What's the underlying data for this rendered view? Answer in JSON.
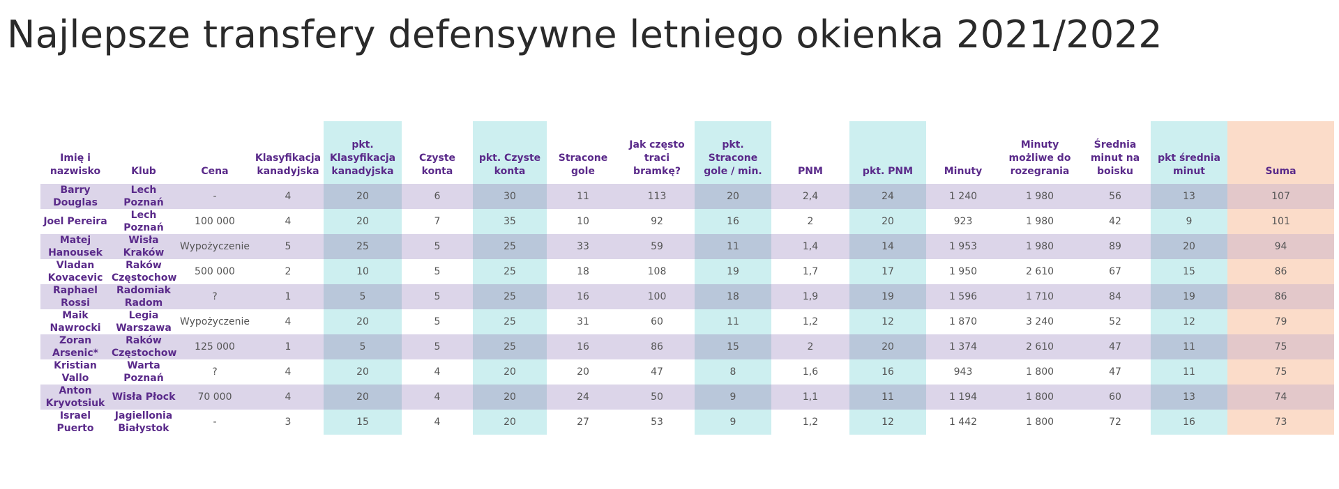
{
  "title": "Najlepsze transfery defensywne letniego okienka 2021/2022",
  "table": {
    "headers": [
      "Imię i nazwisko",
      "Klub",
      "Cena",
      "Klasyfikacja kanadyjska",
      "pkt. Klasyfikacja kanadyjska",
      "Czyste konta",
      "pkt. Czyste konta",
      "Stracone gole",
      "Jak często traci bramkę?",
      "pkt. Stracone gole / min.",
      "PNM",
      "pkt. PNM",
      "Minuty",
      "Minuty możliwe do rozegrania",
      "Średnia minut na boisku",
      "pkt średnia minut",
      "Suma"
    ],
    "rows": [
      [
        "Barry Douglas",
        "Lech Poznań",
        "-",
        "4",
        "20",
        "6",
        "30",
        "11",
        "113",
        "20",
        "2,4",
        "24",
        "1 240",
        "1 980",
        "56",
        "13",
        "107"
      ],
      [
        "Joel Pereira",
        "Lech Poznań",
        "100 000",
        "4",
        "20",
        "7",
        "35",
        "10",
        "92",
        "16",
        "2",
        "20",
        "923",
        "1 980",
        "42",
        "9",
        "101"
      ],
      [
        "Matej Hanousek",
        "Wisła Kraków",
        "Wypożyczenie",
        "5",
        "25",
        "5",
        "25",
        "33",
        "59",
        "11",
        "1,4",
        "14",
        "1 953",
        "1 980",
        "89",
        "20",
        "94"
      ],
      [
        "Vladan Kovacevic",
        "Raków Częstochowa",
        "500 000",
        "2",
        "10",
        "5",
        "25",
        "18",
        "108",
        "19",
        "1,7",
        "17",
        "1 950",
        "2 610",
        "67",
        "15",
        "86"
      ],
      [
        "Raphael Rossi",
        "Radomiak Radom",
        "?",
        "1",
        "5",
        "5",
        "25",
        "16",
        "100",
        "18",
        "1,9",
        "19",
        "1 596",
        "1 710",
        "84",
        "19",
        "86"
      ],
      [
        "Maik Nawrocki",
        "Legia Warszawa",
        "Wypożyczenie",
        "4",
        "20",
        "5",
        "25",
        "31",
        "60",
        "11",
        "1,2",
        "12",
        "1 870",
        "3 240",
        "52",
        "12",
        "79"
      ],
      [
        "Zoran Arsenic*",
        "Raków Częstochowa",
        "125 000",
        "1",
        "5",
        "5",
        "25",
        "16",
        "86",
        "15",
        "2",
        "20",
        "1 374",
        "2 610",
        "47",
        "11",
        "75"
      ],
      [
        "Kristian Vallo",
        "Warta Poznań",
        "?",
        "4",
        "20",
        "4",
        "20",
        "20",
        "47",
        "8",
        "1,6",
        "16",
        "943",
        "1 800",
        "47",
        "11",
        "75"
      ],
      [
        "Anton Kryvotsiuk",
        "Wisła Płock",
        "70 000",
        "4",
        "20",
        "4",
        "20",
        "24",
        "50",
        "9",
        "1,1",
        "11",
        "1 194",
        "1 800",
        "60",
        "13",
        "74"
      ],
      [
        "Israel Puerto",
        "Jagiellonia Białystok",
        "-",
        "3",
        "15",
        "4",
        "20",
        "27",
        "53",
        "9",
        "1,2",
        "12",
        "1 442",
        "1 800",
        "72",
        "16",
        "73"
      ]
    ]
  },
  "colors": {
    "header_text": "#5a2a8a",
    "stripe": "#dcd5e9",
    "highlight_column": "#cdeff0",
    "highlight_column_striped": "#b9c7da",
    "sum_column": "#fbdcc9",
    "sum_column_striped": "#e3c8ca"
  }
}
